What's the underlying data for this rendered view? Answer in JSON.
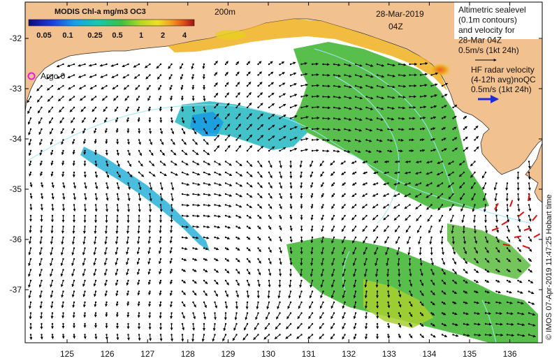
{
  "colorbar": {
    "title": "MODIS Chl-a mg/m3 OC3",
    "ticks": [
      "0.05",
      "0.1",
      "0.25",
      "0.5",
      "1",
      "2",
      "4"
    ]
  },
  "datetime": {
    "date": "28-Mar-2019",
    "time": "04Z"
  },
  "isobath_label": "200m",
  "argo_label": "Argo 0",
  "legend": {
    "altimetry_lines": [
      "Altimetric sealevel",
      "(0.1m contours)",
      "and velocity for",
      "28-Mar 04Z",
      "0.5m/s (1kt 24h)"
    ],
    "hf_radar_lines": [
      "HF radar velocity",
      "(4-12h avg)noQC",
      "0.5m/s (1kt 24h)"
    ]
  },
  "credit": "© IMOS 07-Apr-2019 11:47:25 Hobart time",
  "axes": {
    "lon_ticks": [
      "125",
      "126",
      "127",
      "128",
      "129",
      "130",
      "131",
      "132",
      "133",
      "134",
      "135",
      "136"
    ],
    "lat_ticks": [
      "-32",
      "-33",
      "-34",
      "-35",
      "-36",
      "-37"
    ]
  },
  "colors": {
    "land": "#f2c190",
    "ocean": "#ffffff",
    "argo_marker": "#e020e0",
    "hf_radar_arrow": "#1a2fd6",
    "hf_radar_vectors": "#e01010"
  }
}
